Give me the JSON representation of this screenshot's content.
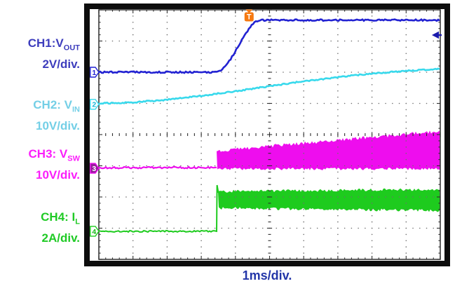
{
  "channels": [
    {
      "num": "1",
      "label_main": "CH1:V",
      "label_sub": "OUT",
      "scale": "2V/div.",
      "label_color": "#3d3dbd",
      "trace_color": "#2222d2",
      "marker_fill": "#ffffff",
      "marker_text": "#2222d2",
      "position_div": 2.0
    },
    {
      "num": "2",
      "label_main": "CH2: V",
      "label_sub": "IN",
      "scale": "10V/div.",
      "label_color": "#74cfe6",
      "trace_color": "#38d9ec",
      "marker_fill": "#ffffff",
      "marker_text": "#18b8d8",
      "position_div": 3.03
    },
    {
      "num": "3",
      "label_main": "CH3: V",
      "label_sub": "SW",
      "scale": "10V/div.",
      "label_color": "#fb1efb",
      "trace_color": "#ee0dee",
      "marker_fill": "#951d9b",
      "marker_text": "#ffffff",
      "position_div": 5.08
    },
    {
      "num": "4",
      "label_main": "CH4: I",
      "label_sub": "L",
      "scale": "2A/div.",
      "label_color": "#1fca25",
      "trace_color": "#1ecb1e",
      "marker_fill": "#ffffff",
      "marker_text": "#13b813",
      "position_div": 7.1
    }
  ],
  "chart_data": {
    "type": "line",
    "title": "",
    "xlabel": "1ms/div.",
    "x_divisions": 10,
    "y_divisions": 8,
    "minor_per_div": 5,
    "grid": "dotted-graticule",
    "series": [
      {
        "name": "CH1: VOUT, 2V/div.",
        "color": "#2222d2",
        "kind": "step-rise",
        "baseline_div": 2.0,
        "rise_start_xdiv": 3.43,
        "rise_end_xdiv": 4.74,
        "top_div": 0.33
      },
      {
        "name": "CH2: VIN, 10V/div.",
        "color": "#38d9ec",
        "kind": "ramp",
        "x_div": [
          0,
          1,
          2,
          3,
          4,
          5,
          6,
          7,
          8,
          9,
          10
        ],
        "y_div": [
          3.0,
          2.97,
          2.88,
          2.76,
          2.61,
          2.45,
          2.29,
          2.16,
          2.04,
          1.96,
          1.89
        ]
      },
      {
        "name": "CH3: VSW, 10V/div.",
        "color": "#ee0dee",
        "kind": "switching-band",
        "baseline_div": 5.06,
        "switch_start_xdiv": 3.45,
        "band_top_start_div": 4.52,
        "band_top_end_div": 3.89,
        "band_bottom_div": 5.1
      },
      {
        "name": "CH4: IL, 2A/div.",
        "color": "#1ecb1e",
        "kind": "switching-band",
        "baseline_div": 7.1,
        "switch_start_xdiv": 3.45,
        "spike_top_div": 5.62,
        "band_top_start_div": 5.82,
        "band_top_end_div": 5.75,
        "band_bottom_start_div": 6.36,
        "band_bottom_end_div": 6.44
      }
    ],
    "trigger": {
      "label": "T",
      "x_div": 4.4,
      "color": "#f57911"
    },
    "right_marker": {
      "y_div": 0.81,
      "color": "#1a1aac"
    }
  }
}
